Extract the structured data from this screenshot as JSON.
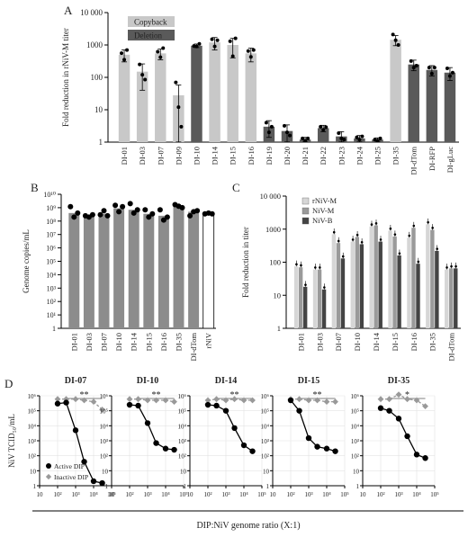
{
  "panel_labels": {
    "A": "A",
    "B": "B",
    "C": "C",
    "D": "D"
  },
  "colors": {
    "copyback": "#c8c8c8",
    "deletion": "#5a5a5a",
    "nivb": "#444444",
    "nivm": "#9a9a9a",
    "rnivm": "#d6d6d6",
    "active": "#000000",
    "inactive": "#999999",
    "bar_b": "#8c8c8c"
  },
  "chart_data": [
    {
      "id": "A",
      "type": "bar",
      "scale": "log",
      "ylabel": "Fold reduction in rNiV-M titer",
      "ylim": [
        1,
        10000
      ],
      "yticks": [
        1,
        10,
        100,
        1000,
        10000
      ],
      "yticklabels": [
        "1",
        "10",
        "100",
        "1000",
        "10 000"
      ],
      "categories": [
        "DI-01",
        "DI-03",
        "DI-07",
        "DI-09",
        "DI-10",
        "DI-14",
        "DI-15",
        "DI-16",
        "DI-19",
        "DI-20",
        "DI-21",
        "DI-22",
        "DI-23",
        "DI-24",
        "DI-25",
        "DI-35",
        "DI-dTom",
        "DI-RFP",
        "DI-gLuc"
      ],
      "groups": [
        "copyback",
        "copyback",
        "copyback",
        "copyback",
        "deletion",
        "copyback",
        "copyback",
        "copyback",
        "deletion",
        "deletion",
        "deletion",
        "deletion",
        "deletion",
        "deletion",
        "deletion",
        "copyback",
        "deletion",
        "deletion",
        "deletion"
      ],
      "values": [
        500,
        150,
        550,
        28,
        950,
        1200,
        1000,
        550,
        3,
        2.2,
        1.2,
        2.7,
        1.5,
        1.3,
        1.2,
        1450,
        250,
        170,
        140
      ],
      "err": [
        200,
        110,
        200,
        30,
        120,
        500,
        600,
        250,
        1.6,
        1.2,
        0.2,
        0.6,
        0.6,
        0.3,
        0.15,
        500,
        90,
        60,
        60
      ],
      "points": [
        [
          560,
          350,
          700
        ],
        [
          250,
          120,
          85
        ],
        [
          620,
          420,
          800
        ],
        [
          70,
          12,
          3
        ],
        [
          930,
          900,
          1080
        ],
        [
          1500,
          900,
          1400
        ],
        [
          1300,
          450,
          1600
        ],
        [
          650,
          430,
          700
        ],
        [
          4,
          2,
          3
        ],
        [
          3.2,
          2,
          1.6
        ],
        [
          1.3,
          1.1,
          1.3
        ],
        [
          3,
          2.4,
          2.9
        ],
        [
          1.9,
          1.3,
          1.2
        ],
        [
          1.4,
          1.2,
          1.5
        ],
        [
          1.2,
          1.1,
          1.3
        ],
        [
          2100,
          1400,
          1000
        ],
        [
          320,
          200,
          230
        ],
        [
          200,
          130,
          200
        ],
        [
          190,
          110,
          140
        ]
      ],
      "legend": [
        {
          "label": "Copyback",
          "key": "copyback"
        },
        {
          "label": "Deletion",
          "key": "deletion"
        }
      ],
      "legend_position": "top-left"
    },
    {
      "id": "B",
      "type": "bar",
      "scale": "log",
      "ylabel": "Genome copies/mL",
      "ylim": [
        1,
        10000000000
      ],
      "yticks": [
        1,
        10,
        100,
        1000,
        10000,
        100000,
        1000000,
        10000000,
        100000000,
        1000000000,
        10000000000
      ],
      "yticklabels": [
        "1",
        "10¹",
        "10²",
        "10³",
        "10⁴",
        "10⁵",
        "10⁶",
        "10⁷",
        "10⁸",
        "10⁹",
        "10¹⁰"
      ],
      "categories": [
        "DI-01",
        "DI-03",
        "DI-07",
        "DI-10",
        "DI-14",
        "DI-15",
        "DI-16",
        "DI-35",
        "DI-dTom",
        "rNiV"
      ],
      "values": [
        400000000,
        250000000,
        350000000,
        900000000,
        700000000,
        350000000,
        250000000,
        1200000000,
        500000000,
        350000000
      ],
      "points": [
        [
          1200000000,
          200000000,
          400000000
        ],
        [
          250000000,
          200000000,
          300000000
        ],
        [
          300000000,
          600000000,
          250000000
        ],
        [
          1500000000,
          500000000,
          1200000000
        ],
        [
          2000000000,
          400000000,
          700000000
        ],
        [
          700000000,
          200000000,
          350000000
        ],
        [
          700000000,
          120000000,
          200000000
        ],
        [
          1700000000,
          1300000000,
          1000000000
        ],
        [
          250000000,
          500000000,
          600000000
        ],
        [
          350000000,
          400000000,
          350000000
        ]
      ]
    },
    {
      "id": "C",
      "type": "bar",
      "scale": "log",
      "ylabel": "Fold reduction in titer",
      "ylim": [
        1,
        10000
      ],
      "yticks": [
        1,
        10,
        100,
        1000,
        10000
      ],
      "yticklabels": [
        "1",
        "10",
        "100",
        "1000",
        "10 000"
      ],
      "categories": [
        "DI-01",
        "DI-03",
        "DI-07",
        "DI-10",
        "DI-14",
        "DI-15",
        "DI-16",
        "DI-35",
        "DI-dTom"
      ],
      "series": [
        {
          "name": "rNiV-M",
          "key": "rnivm",
          "values": [
            75,
            60,
            700,
            420,
            1200,
            900,
            550,
            1400,
            60
          ]
        },
        {
          "name": "NiV-M",
          "key": "nivm",
          "values": [
            70,
            60,
            380,
            580,
            1300,
            600,
            1100,
            950,
            65
          ]
        },
        {
          "name": "NiV-B",
          "key": "nivb",
          "values": [
            18,
            15,
            130,
            350,
            420,
            160,
            90,
            220,
            65
          ]
        }
      ],
      "legend_position": "top-left"
    },
    {
      "id": "D",
      "type": "line",
      "scale": "loglog",
      "ylabel": "NiV TCID₅₀/mL",
      "xlabel": "DIP:NiV genome ratio (X:1)",
      "ylim": [
        1,
        1000000
      ],
      "xlim": [
        10,
        100000
      ],
      "yticklabels": [
        "1",
        "10",
        "10²",
        "10³",
        "10⁴",
        "10⁵",
        "10⁶"
      ],
      "xticklabels": [
        "10",
        "10²",
        "10³",
        "10⁴",
        "10⁵"
      ],
      "x": [
        100,
        300,
        1000,
        3000,
        10000,
        30000
      ],
      "panels": [
        {
          "title": "DI-07",
          "active": [
            300000,
            350000,
            5000,
            40,
            2,
            1.5
          ],
          "inactive": [
            600000,
            600000,
            600000,
            500000,
            400000,
            120000
          ],
          "sig": "**"
        },
        {
          "title": "DI-10",
          "active": [
            250000,
            220000,
            15000,
            700,
            300,
            250
          ],
          "inactive": [
            600000,
            600000,
            500000,
            500000,
            500000,
            400000
          ],
          "sig": "**"
        },
        {
          "title": "DI-14",
          "active": [
            250000,
            220000,
            100000,
            7000,
            500,
            200
          ],
          "inactive": [
            500000,
            600000,
            500000,
            600000,
            500000,
            500000
          ],
          "sig": "**"
        },
        {
          "title": "DI-15",
          "active": [
            500000,
            100000,
            1500,
            400,
            300,
            200
          ],
          "inactive": [
            600000,
            600000,
            500000,
            500000,
            400000,
            400000
          ],
          "sig": "**"
        },
        {
          "title": "DI-35",
          "active": [
            150000,
            100000,
            30000,
            2000,
            120,
            70
          ],
          "inactive": [
            600000,
            600000,
            1200000,
            600000,
            500000,
            200000
          ],
          "sig": "*"
        }
      ],
      "legend": [
        {
          "label": "Active DIP",
          "key": "active"
        },
        {
          "label": "Inactive DIP",
          "key": "inactive"
        }
      ],
      "legend_position": "bottom-left"
    }
  ]
}
